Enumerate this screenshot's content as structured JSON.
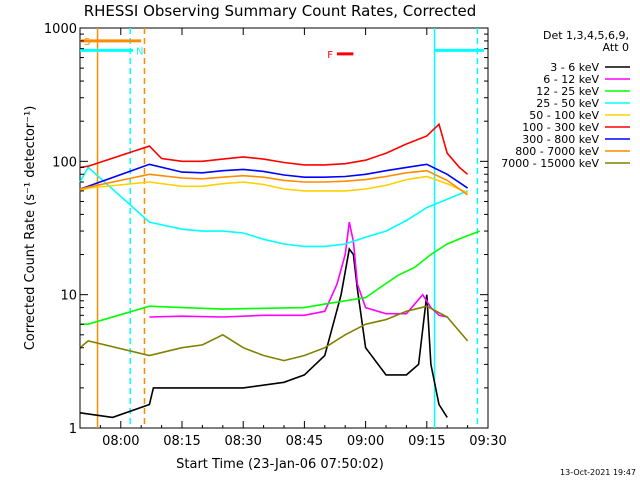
{
  "chart_data": {
    "type": "line",
    "title": "RHESSI Observing Summary Count Rates, Corrected",
    "ylabel": "Corrected Count Rate (s⁻¹ detector⁻¹)",
    "xlabel": "Start Time (23-Jan-06 07:50:02)",
    "yscale": "log",
    "ylim": [
      1,
      1000
    ],
    "xlim_minutes_after_0750": [
      0,
      100
    ],
    "x_ticks": [
      {
        "label": "08:00",
        "m": 10
      },
      {
        "label": "08:15",
        "m": 25
      },
      {
        "label": "08:30",
        "m": 40
      },
      {
        "label": "08:45",
        "m": 55
      },
      {
        "label": "09:00",
        "m": 70
      },
      {
        "label": "09:15",
        "m": 85
      },
      {
        "label": "09:30",
        "m": 100
      }
    ],
    "y_ticks": [
      {
        "label": "1",
        "v": 1
      },
      {
        "label": "10",
        "v": 10
      },
      {
        "label": "100",
        "v": 100
      },
      {
        "label": "1000",
        "v": 1000
      }
    ],
    "legend_header": [
      "Det 1,3,4,5,6,9,",
      "Att 0"
    ],
    "legend_position": "right",
    "footer_date": "13-Oct-2021 19:47",
    "series": [
      {
        "name": "3 - 6 keV",
        "color": "#000000",
        "points": [
          [
            0,
            1.3
          ],
          [
            8,
            1.2
          ],
          [
            17,
            1.5
          ],
          [
            18,
            2.0
          ],
          [
            25,
            2.0
          ],
          [
            40,
            2.0
          ],
          [
            50,
            2.2
          ],
          [
            55,
            2.5
          ],
          [
            60,
            3.5
          ],
          [
            64,
            10
          ],
          [
            66,
            22
          ],
          [
            67,
            20
          ],
          [
            68,
            11
          ],
          [
            70,
            4
          ],
          [
            75,
            2.5
          ],
          [
            80,
            2.5
          ],
          [
            83,
            3
          ],
          [
            85,
            10
          ],
          [
            86,
            3
          ],
          [
            88,
            1.5
          ],
          [
            90,
            1.2
          ]
        ]
      },
      {
        "name": "6 - 12 keV",
        "color": "#ff00ff",
        "points": [
          [
            17,
            6.8
          ],
          [
            25,
            6.9
          ],
          [
            35,
            6.8
          ],
          [
            45,
            7.0
          ],
          [
            55,
            7.0
          ],
          [
            60,
            7.5
          ],
          [
            63,
            12
          ],
          [
            65,
            20
          ],
          [
            66,
            35
          ],
          [
            67,
            25
          ],
          [
            68,
            12
          ],
          [
            70,
            8
          ],
          [
            75,
            7.2
          ],
          [
            80,
            7.2
          ],
          [
            84,
            10
          ],
          [
            86,
            8
          ],
          [
            88,
            7
          ],
          [
            90,
            6.8
          ]
        ]
      },
      {
        "name": "12 - 25 keV",
        "color": "#00ff00",
        "points": [
          [
            0,
            6
          ],
          [
            2,
            6
          ],
          [
            17,
            8.2
          ],
          [
            25,
            8.0
          ],
          [
            35,
            7.8
          ],
          [
            45,
            7.9
          ],
          [
            55,
            8.0
          ],
          [
            60,
            8.5
          ],
          [
            65,
            9
          ],
          [
            70,
            9.5
          ],
          [
            73,
            11
          ],
          [
            78,
            14
          ],
          [
            82,
            16
          ],
          [
            86,
            20
          ],
          [
            90,
            24
          ],
          [
            94,
            27
          ],
          [
            98,
            30
          ]
        ]
      },
      {
        "name": "25 - 50 keV",
        "color": "#00ffff",
        "points": [
          [
            0,
            70
          ],
          [
            2,
            90
          ],
          [
            17,
            35
          ],
          [
            25,
            31
          ],
          [
            30,
            30
          ],
          [
            35,
            30
          ],
          [
            40,
            29
          ],
          [
            45,
            26
          ],
          [
            50,
            24
          ],
          [
            55,
            23
          ],
          [
            60,
            23
          ],
          [
            65,
            24
          ],
          [
            70,
            27
          ],
          [
            75,
            30
          ],
          [
            80,
            36
          ],
          [
            85,
            45
          ],
          [
            90,
            52
          ],
          [
            95,
            60
          ]
        ]
      },
      {
        "name": "50 - 100 keV",
        "color": "#ffd000",
        "points": [
          [
            0,
            60
          ],
          [
            2,
            63
          ],
          [
            17,
            70
          ],
          [
            25,
            65
          ],
          [
            30,
            65
          ],
          [
            35,
            68
          ],
          [
            40,
            70
          ],
          [
            45,
            67
          ],
          [
            50,
            62
          ],
          [
            55,
            60
          ],
          [
            60,
            60
          ],
          [
            65,
            60
          ],
          [
            70,
            62
          ],
          [
            75,
            66
          ],
          [
            80,
            73
          ],
          [
            85,
            77
          ],
          [
            90,
            68
          ],
          [
            95,
            58
          ]
        ]
      },
      {
        "name": "100 - 300 keV",
        "color": "#ff0000",
        "points": [
          [
            0,
            90
          ],
          [
            2,
            92
          ],
          [
            17,
            130
          ],
          [
            20,
            105
          ],
          [
            25,
            100
          ],
          [
            30,
            100
          ],
          [
            35,
            104
          ],
          [
            40,
            108
          ],
          [
            45,
            104
          ],
          [
            50,
            98
          ],
          [
            55,
            94
          ],
          [
            60,
            94
          ],
          [
            65,
            96
          ],
          [
            70,
            102
          ],
          [
            75,
            115
          ],
          [
            80,
            135
          ],
          [
            85,
            155
          ],
          [
            88,
            190
          ],
          [
            90,
            115
          ],
          [
            93,
            90
          ],
          [
            95,
            80
          ]
        ]
      },
      {
        "name": "300 - 800 keV",
        "color": "#0000ff",
        "points": [
          [
            0,
            62
          ],
          [
            2,
            65
          ],
          [
            17,
            95
          ],
          [
            25,
            83
          ],
          [
            30,
            82
          ],
          [
            35,
            85
          ],
          [
            40,
            87
          ],
          [
            45,
            84
          ],
          [
            50,
            79
          ],
          [
            55,
            76
          ],
          [
            60,
            76
          ],
          [
            65,
            77
          ],
          [
            70,
            80
          ],
          [
            75,
            85
          ],
          [
            80,
            90
          ],
          [
            85,
            95
          ],
          [
            90,
            80
          ],
          [
            95,
            63
          ]
        ]
      },
      {
        "name": "800 - 7000 keV",
        "color": "#ff8c00",
        "points": [
          [
            0,
            62
          ],
          [
            2,
            64
          ],
          [
            17,
            80
          ],
          [
            25,
            75
          ],
          [
            30,
            74
          ],
          [
            35,
            76
          ],
          [
            40,
            78
          ],
          [
            45,
            76
          ],
          [
            50,
            72
          ],
          [
            55,
            70
          ],
          [
            60,
            70
          ],
          [
            65,
            71
          ],
          [
            70,
            73
          ],
          [
            75,
            77
          ],
          [
            80,
            82
          ],
          [
            85,
            85
          ],
          [
            90,
            72
          ],
          [
            95,
            56
          ]
        ]
      },
      {
        "name": "7000 - 15000 keV",
        "color": "#808000",
        "points": [
          [
            0,
            4
          ],
          [
            2,
            4.5
          ],
          [
            17,
            3.5
          ],
          [
            25,
            4
          ],
          [
            30,
            4.2
          ],
          [
            35,
            5
          ],
          [
            40,
            4
          ],
          [
            45,
            3.5
          ],
          [
            50,
            3.2
          ],
          [
            55,
            3.5
          ],
          [
            60,
            4
          ],
          [
            65,
            5
          ],
          [
            70,
            6
          ],
          [
            75,
            6.5
          ],
          [
            80,
            7.5
          ],
          [
            85,
            8.2
          ],
          [
            90,
            6.8
          ],
          [
            95,
            4.5
          ]
        ]
      }
    ],
    "flags": [
      {
        "label": "S",
        "color": "#ff8c00",
        "m_start": 0,
        "m_end": 15,
        "v": 800
      },
      {
        "label": "N",
        "color": "#00ffff",
        "m_start": -3,
        "m_end": 13,
        "v": 680
      },
      {
        "label": "F",
        "color": "#ff0000",
        "m_start": 63,
        "m_end": 67,
        "v": 640
      },
      {
        "label": "",
        "color": "#00ffff",
        "m_start": 87,
        "m_end": 99,
        "v": 680
      }
    ],
    "vlines": [
      {
        "m": 4.3,
        "color": "#ff8c00",
        "style": "solid"
      },
      {
        "m": 12.3,
        "color": "#00ffff",
        "style": "dashed"
      },
      {
        "m": 15.8,
        "color": "#ff8c00",
        "style": "dashed"
      },
      {
        "m": 86.9,
        "color": "#00ffff",
        "style": "solid"
      },
      {
        "m": 97.4,
        "color": "#00ffff",
        "style": "dashed"
      }
    ]
  }
}
